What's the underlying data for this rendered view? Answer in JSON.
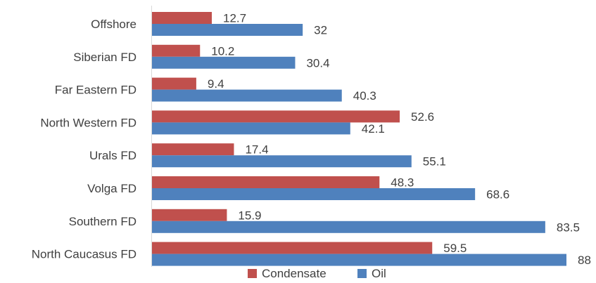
{
  "chart_data": {
    "type": "bar",
    "orientation": "horizontal",
    "categories": [
      "Offshore",
      "Siberian FD",
      "Far Eastern FD",
      "North Western FD",
      "Urals FD",
      "Volga FD",
      "Southern FD",
      "North Caucasus FD"
    ],
    "series": [
      {
        "name": "Condensate",
        "color": "#C0504D",
        "values": [
          12.7,
          10.2,
          9.4,
          52.6,
          17.4,
          48.3,
          15.9,
          59.5
        ]
      },
      {
        "name": "Oil",
        "color": "#4F81BD",
        "values": [
          32,
          30.4,
          40.3,
          42.1,
          55.1,
          68.6,
          83.5,
          88
        ]
      }
    ],
    "xlim": [
      0,
      88
    ],
    "grid": false,
    "legend_position": "bottom"
  }
}
